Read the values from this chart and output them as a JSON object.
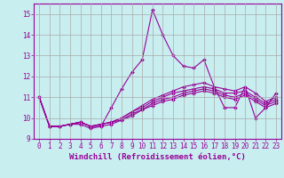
{
  "xlabel": "Windchill (Refroidissement éolien,°C)",
  "background_color": "#c8eef0",
  "line_color": "#990099",
  "grid_color": "#aaaaaa",
  "x_values": [
    0,
    1,
    2,
    3,
    4,
    5,
    6,
    7,
    8,
    9,
    10,
    11,
    12,
    13,
    14,
    15,
    16,
    17,
    18,
    19,
    20,
    21,
    22,
    23
  ],
  "series": [
    [
      11.0,
      9.6,
      9.6,
      9.7,
      9.7,
      9.5,
      9.6,
      10.5,
      11.4,
      12.2,
      12.8,
      15.2,
      14.0,
      13.0,
      12.5,
      12.4,
      12.8,
      11.5,
      10.5,
      10.5,
      11.5,
      10.0,
      10.5,
      11.2
    ],
    [
      11.0,
      9.6,
      9.6,
      9.7,
      9.8,
      9.6,
      9.7,
      9.8,
      10.0,
      10.3,
      10.6,
      10.9,
      11.1,
      11.3,
      11.5,
      11.6,
      11.7,
      11.5,
      11.4,
      11.3,
      11.5,
      11.2,
      10.8,
      11.0
    ],
    [
      11.0,
      9.6,
      9.6,
      9.7,
      9.8,
      9.6,
      9.7,
      9.8,
      10.0,
      10.3,
      10.5,
      10.8,
      11.0,
      11.2,
      11.3,
      11.4,
      11.5,
      11.4,
      11.2,
      11.2,
      11.3,
      11.0,
      10.7,
      10.9
    ],
    [
      11.0,
      9.6,
      9.6,
      9.7,
      9.8,
      9.6,
      9.7,
      9.8,
      9.9,
      10.2,
      10.4,
      10.7,
      10.9,
      11.0,
      11.2,
      11.3,
      11.4,
      11.3,
      11.1,
      11.0,
      11.2,
      10.9,
      10.6,
      10.8
    ],
    [
      11.0,
      9.6,
      9.6,
      9.7,
      9.8,
      9.6,
      9.6,
      9.7,
      9.9,
      10.1,
      10.4,
      10.6,
      10.8,
      10.9,
      11.1,
      11.2,
      11.3,
      11.2,
      11.0,
      10.9,
      11.1,
      10.8,
      10.5,
      10.7
    ]
  ],
  "ylim": [
    9.0,
    15.5
  ],
  "yticks": [
    9,
    10,
    11,
    12,
    13,
    14,
    15
  ],
  "xlim": [
    -0.5,
    23.5
  ],
  "xticks": [
    0,
    1,
    2,
    3,
    4,
    5,
    6,
    7,
    8,
    9,
    10,
    11,
    12,
    13,
    14,
    15,
    16,
    17,
    18,
    19,
    20,
    21,
    22,
    23
  ],
  "marker": "D",
  "markersize": 2.0,
  "linewidth": 0.8,
  "tick_fontsize": 5.5,
  "xlabel_fontsize": 6.5
}
